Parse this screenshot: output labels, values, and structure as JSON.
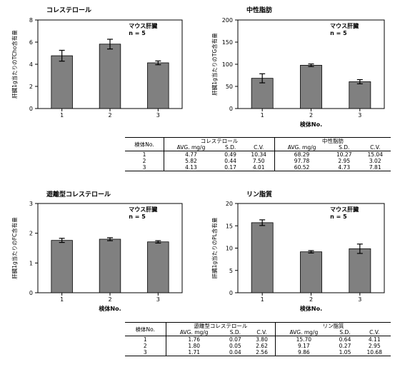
{
  "chart_data": [
    {
      "type": "bar",
      "title": "コレステロール",
      "note_lines": [
        "マウス肝臓",
        "n = 5"
      ],
      "xlabel": "",
      "ylabel": "肝臓1g当たりのTCho含有量",
      "ylim": [
        0,
        8
      ],
      "yticks": [
        "0",
        "2",
        "4",
        "6",
        "8"
      ],
      "categories": [
        "1",
        "2",
        "3"
      ],
      "values": [
        4.77,
        5.82,
        4.13
      ],
      "errors": [
        0.49,
        0.44,
        0.17
      ],
      "bar_color": "#808080"
    },
    {
      "type": "bar",
      "title": "中性脂肪",
      "note_lines": [
        "マウス肝臓",
        "n = 5"
      ],
      "xlabel": "検体No.",
      "ylabel": "肝臓1g当たりのTG含有量",
      "ylim": [
        0,
        200
      ],
      "yticks": [
        "0",
        "50",
        "100",
        "150",
        "200"
      ],
      "categories": [
        "1",
        "2",
        "3"
      ],
      "values": [
        68.29,
        97.78,
        60.52
      ],
      "errors": [
        10.27,
        2.95,
        4.73
      ],
      "bar_color": "#808080"
    },
    {
      "type": "bar",
      "title": "遊離型コレステロール",
      "note_lines": [
        "マウス肝臓",
        "n = 5"
      ],
      "xlabel": "検体No.",
      "ylabel": "肝臓1g当たりのFC含有量",
      "ylim": [
        0,
        3
      ],
      "yticks": [
        "0",
        "1",
        "2",
        "3"
      ],
      "categories": [
        "1",
        "2",
        "3"
      ],
      "values": [
        1.76,
        1.8,
        1.71
      ],
      "errors": [
        0.07,
        0.05,
        0.04
      ],
      "bar_color": "#808080"
    },
    {
      "type": "bar",
      "title": "リン脂質",
      "note_lines": [
        "マウス肝臓",
        "n = 5"
      ],
      "xlabel": "検体No.",
      "ylabel": "肝臓1g当たりのPL含有量",
      "ylim": [
        0,
        20
      ],
      "yticks": [
        "0",
        "5",
        "10",
        "15",
        "20"
      ],
      "categories": [
        "1",
        "2",
        "3"
      ],
      "values": [
        15.7,
        9.17,
        9.86
      ],
      "errors": [
        0.64,
        0.27,
        1.05
      ],
      "bar_color": "#808080"
    }
  ],
  "tables": [
    {
      "id_header": "検体No.",
      "groups": [
        "コレステロール",
        "中性脂肪"
      ],
      "subheaders": [
        "AVG. mg/g",
        "S.D.",
        "C.V.",
        "AVG. mg/g",
        "S.D.",
        "C.V."
      ],
      "rows": [
        [
          "1",
          "4.77",
          "0.49",
          "10.34",
          "68.29",
          "10.27",
          "15.04"
        ],
        [
          "2",
          "5.82",
          "0.44",
          "7.50",
          "97.78",
          "2.95",
          "3.02"
        ],
        [
          "3",
          "4.13",
          "0.17",
          "4.01",
          "60.52",
          "4.73",
          "7.81"
        ]
      ]
    },
    {
      "id_header": "検体No.",
      "groups": [
        "遊離型コレステロール",
        "リン脂質"
      ],
      "subheaders": [
        "AVG. mg/g",
        "S.D.",
        "C.V.",
        "AVG. mg/g",
        "S.D.",
        "C.V."
      ],
      "rows": [
        [
          "1",
          "1.76",
          "0.07",
          "3.80",
          "15.70",
          "0.64",
          "4.11"
        ],
        [
          "2",
          "1.80",
          "0.05",
          "2.62",
          "9.17",
          "0.27",
          "2.95"
        ],
        [
          "3",
          "1.71",
          "0.04",
          "2.56",
          "9.86",
          "1.05",
          "10.68"
        ]
      ]
    }
  ]
}
